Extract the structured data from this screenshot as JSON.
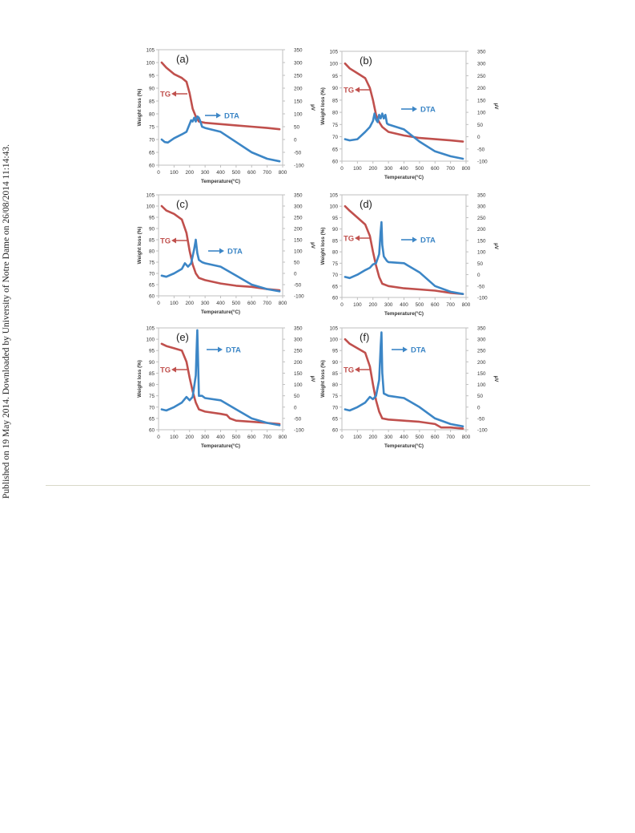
{
  "sidenote": "Published on 19 May 2014. Downloaded by University of Notre Dame on 26/08/2014 11:14:43.",
  "colors": {
    "tg": "#c0504d",
    "dta": "#3c86c6",
    "axis": "#bfbfbf",
    "text": "#333333"
  },
  "chart_data": [
    {
      "type": "line",
      "panel_label": "(a)",
      "xlabel": "Temperature(°C)",
      "ylabel": "Weight loss (%)",
      "y2label": "µV",
      "xlim": [
        0,
        800
      ],
      "ylim": [
        60,
        105
      ],
      "y2lim": [
        -100,
        350
      ],
      "xticks": [
        0,
        100,
        200,
        300,
        400,
        500,
        600,
        700,
        800
      ],
      "yticks": [
        60,
        65,
        70,
        75,
        80,
        85,
        90,
        95,
        100,
        105
      ],
      "y2ticks": [
        -100,
        -50,
        0,
        50,
        100,
        150,
        200,
        250,
        300,
        350
      ],
      "tg_label": "TG",
      "dta_label": "DTA",
      "series": [
        {
          "name": "TG",
          "axis": "left",
          "x": [
            20,
            50,
            100,
            150,
            180,
            200,
            220,
            240,
            260,
            300,
            400,
            500,
            600,
            700,
            780
          ],
          "y": [
            100,
            98,
            95.5,
            94,
            92.5,
            88,
            82,
            79,
            77,
            76.5,
            76,
            75.5,
            75,
            74.5,
            74
          ]
        },
        {
          "name": "DTA",
          "axis": "right",
          "x": [
            20,
            40,
            60,
            100,
            150,
            180,
            200,
            210,
            220,
            230,
            240,
            250,
            260,
            270,
            280,
            300,
            400,
            500,
            600,
            700,
            780
          ],
          "y": [
            0,
            -10,
            -12,
            5,
            20,
            30,
            60,
            75,
            70,
            85,
            70,
            90,
            85,
            70,
            50,
            45,
            30,
            -10,
            -50,
            -75,
            -85
          ]
        }
      ]
    },
    {
      "type": "line",
      "panel_label": "(b)",
      "xlabel": "Temperature(°C)",
      "ylabel": "Weight loss (%)",
      "y2label": "µV",
      "xlim": [
        0,
        800
      ],
      "ylim": [
        60,
        105
      ],
      "y2lim": [
        -100,
        350
      ],
      "xticks": [
        0,
        100,
        200,
        300,
        400,
        500,
        600,
        700,
        800
      ],
      "yticks": [
        60,
        65,
        70,
        75,
        80,
        85,
        90,
        95,
        100,
        105
      ],
      "y2ticks": [
        -100,
        -50,
        0,
        50,
        100,
        150,
        200,
        250,
        300,
        350
      ],
      "tg_label": "TG",
      "dta_label": "DTA",
      "series": [
        {
          "name": "TG",
          "axis": "left",
          "x": [
            20,
            50,
            100,
            150,
            180,
            200,
            220,
            240,
            260,
            300,
            400,
            500,
            600,
            700,
            780
          ],
          "y": [
            100,
            98,
            96,
            94,
            90,
            85,
            79,
            76,
            74,
            72,
            70.5,
            69.5,
            69,
            68.5,
            68
          ]
        },
        {
          "name": "DTA",
          "axis": "right",
          "x": [
            20,
            50,
            100,
            150,
            180,
            200,
            210,
            220,
            230,
            240,
            250,
            260,
            270,
            280,
            290,
            300,
            400,
            500,
            600,
            700,
            780
          ],
          "y": [
            -10,
            -15,
            -10,
            20,
            40,
            65,
            95,
            70,
            60,
            90,
            75,
            95,
            75,
            90,
            55,
            50,
            30,
            -20,
            -60,
            -80,
            -90
          ]
        }
      ]
    },
    {
      "type": "line",
      "panel_label": "(c)",
      "xlabel": "Temperature(°C)",
      "ylabel": "Weight loss (%)",
      "y2label": "µV",
      "xlim": [
        0,
        800
      ],
      "ylim": [
        60,
        105
      ],
      "y2lim": [
        -100,
        350
      ],
      "xticks": [
        0,
        100,
        200,
        300,
        400,
        500,
        600,
        700,
        800
      ],
      "yticks": [
        60,
        65,
        70,
        75,
        80,
        85,
        90,
        95,
        100,
        105
      ],
      "y2ticks": [
        -100,
        -50,
        0,
        50,
        100,
        150,
        200,
        250,
        300,
        350
      ],
      "tg_label": "TG",
      "dta_label": "DTA",
      "series": [
        {
          "name": "TG",
          "axis": "left",
          "x": [
            20,
            50,
            100,
            150,
            180,
            200,
            220,
            240,
            260,
            300,
            400,
            500,
            600,
            700,
            780
          ],
          "y": [
            100,
            98,
            96.5,
            94,
            88,
            80,
            74,
            70,
            68,
            67,
            65.5,
            64.5,
            64,
            63,
            62.5
          ]
        },
        {
          "name": "DTA",
          "axis": "right",
          "x": [
            20,
            50,
            100,
            150,
            170,
            190,
            210,
            230,
            240,
            250,
            260,
            280,
            300,
            400,
            500,
            600,
            700,
            780
          ],
          "y": [
            -10,
            -15,
            0,
            20,
            45,
            30,
            45,
            110,
            150,
            90,
            60,
            50,
            45,
            30,
            -10,
            -50,
            -70,
            -80
          ]
        }
      ]
    },
    {
      "type": "line",
      "panel_label": "(d)",
      "xlabel": "Temperature(°C)",
      "ylabel": "Weight loss (%)",
      "y2label": "µV",
      "xlim": [
        0,
        800
      ],
      "ylim": [
        60,
        105
      ],
      "y2lim": [
        -100,
        350
      ],
      "xticks": [
        0,
        100,
        200,
        300,
        400,
        500,
        600,
        700,
        800
      ],
      "yticks": [
        60,
        65,
        70,
        75,
        80,
        85,
        90,
        95,
        100,
        105
      ],
      "y2ticks": [
        -100,
        -50,
        0,
        50,
        100,
        150,
        200,
        250,
        300,
        350
      ],
      "tg_label": "TG",
      "dta_label": "DTA",
      "series": [
        {
          "name": "TG",
          "axis": "left",
          "x": [
            20,
            50,
            100,
            150,
            180,
            200,
            220,
            240,
            260,
            300,
            400,
            500,
            600,
            700,
            780
          ],
          "y": [
            100,
            98,
            95,
            92,
            87,
            80,
            74,
            69,
            66,
            65,
            64,
            63.5,
            63,
            62,
            61.5
          ]
        },
        {
          "name": "DTA",
          "axis": "right",
          "x": [
            20,
            50,
            100,
            150,
            180,
            200,
            220,
            240,
            250,
            255,
            260,
            270,
            290,
            300,
            400,
            500,
            600,
            700,
            780
          ],
          "y": [
            -10,
            -15,
            0,
            20,
            30,
            45,
            50,
            90,
            190,
            230,
            130,
            80,
            60,
            55,
            50,
            10,
            -50,
            -75,
            -85
          ]
        }
      ]
    },
    {
      "type": "line",
      "panel_label": "(e)",
      "xlabel": "Temperature(°C)",
      "ylabel": "Weight loss (%)",
      "y2label": "µV",
      "xlim": [
        0,
        800
      ],
      "ylim": [
        60,
        105
      ],
      "y2lim": [
        -100,
        350
      ],
      "xticks": [
        0,
        100,
        200,
        300,
        400,
        500,
        600,
        700,
        800
      ],
      "yticks": [
        60,
        65,
        70,
        75,
        80,
        85,
        90,
        95,
        100,
        105
      ],
      "y2ticks": [
        -100,
        -50,
        0,
        50,
        100,
        150,
        200,
        250,
        300,
        350
      ],
      "tg_label": "TG",
      "dta_label": "DTA",
      "series": [
        {
          "name": "TG",
          "axis": "left",
          "x": [
            20,
            50,
            100,
            150,
            180,
            200,
            220,
            240,
            260,
            300,
            400,
            440,
            460,
            500,
            600,
            700,
            780
          ],
          "y": [
            98,
            97,
            96,
            95,
            90,
            83,
            77,
            72,
            69,
            68,
            67,
            66.5,
            65,
            64,
            63.5,
            63,
            62.5
          ]
        },
        {
          "name": "DTA",
          "axis": "right",
          "x": [
            20,
            50,
            100,
            150,
            180,
            200,
            220,
            240,
            245,
            250,
            255,
            260,
            280,
            300,
            400,
            500,
            600,
            700,
            780
          ],
          "y": [
            -10,
            -15,
            0,
            20,
            45,
            30,
            45,
            140,
            250,
            340,
            200,
            50,
            50,
            40,
            30,
            -10,
            -50,
            -70,
            -80
          ]
        }
      ]
    },
    {
      "type": "line",
      "panel_label": "(f)",
      "xlabel": "Temperature(°C)",
      "ylabel": "Weight loss (%)",
      "y2label": "µV",
      "xlim": [
        0,
        800
      ],
      "ylim": [
        60,
        105
      ],
      "y2lim": [
        -100,
        350
      ],
      "xticks": [
        0,
        100,
        200,
        300,
        400,
        500,
        600,
        700,
        800
      ],
      "yticks": [
        60,
        65,
        70,
        75,
        80,
        85,
        90,
        95,
        100,
        105
      ],
      "y2ticks": [
        -100,
        -50,
        0,
        50,
        100,
        150,
        200,
        250,
        300,
        350
      ],
      "tg_label": "TG",
      "dta_label": "DTA",
      "series": [
        {
          "name": "TG",
          "axis": "left",
          "x": [
            20,
            50,
            100,
            150,
            180,
            200,
            220,
            240,
            260,
            300,
            400,
            500,
            600,
            640,
            700,
            780
          ],
          "y": [
            100,
            98,
            96,
            94,
            88,
            80,
            73,
            68,
            65,
            64.5,
            64,
            63.5,
            62.5,
            61,
            61,
            60.5
          ]
        },
        {
          "name": "DTA",
          "axis": "right",
          "x": [
            20,
            50,
            100,
            150,
            180,
            200,
            220,
            240,
            250,
            255,
            260,
            270,
            300,
            400,
            500,
            600,
            700,
            780
          ],
          "y": [
            -10,
            -15,
            0,
            20,
            45,
            35,
            50,
            120,
            270,
            330,
            150,
            60,
            50,
            40,
            0,
            -50,
            -75,
            -85
          ]
        }
      ]
    }
  ]
}
